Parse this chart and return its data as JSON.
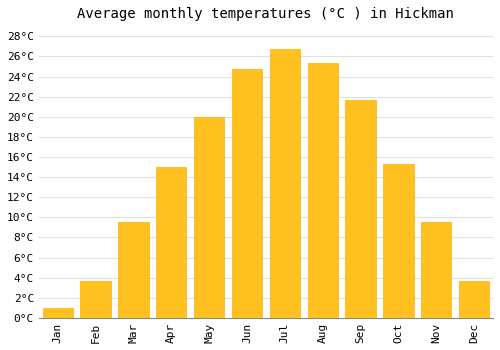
{
  "title": "Average monthly temperatures (°C ) in Hickman",
  "months": [
    "Jan",
    "Feb",
    "Mar",
    "Apr",
    "May",
    "Jun",
    "Jul",
    "Aug",
    "Sep",
    "Oct",
    "Nov",
    "Dec"
  ],
  "values": [
    1.0,
    3.7,
    9.5,
    15.0,
    20.0,
    24.8,
    26.7,
    25.3,
    21.7,
    15.3,
    9.5,
    3.7
  ],
  "bar_color": "#FFC020",
  "bar_edge_color": "#FFB000",
  "background_color": "#FFFFFF",
  "grid_color": "#E0E0E0",
  "ylim": [
    0,
    29
  ],
  "yticks": [
    0,
    2,
    4,
    6,
    8,
    10,
    12,
    14,
    16,
    18,
    20,
    22,
    24,
    26,
    28
  ],
  "ytick_labels": [
    "0°C",
    "2°C",
    "4°C",
    "6°C",
    "8°C",
    "10°C",
    "12°C",
    "14°C",
    "16°C",
    "18°C",
    "20°C",
    "22°C",
    "24°C",
    "26°C",
    "28°C"
  ],
  "title_fontsize": 10,
  "tick_fontsize": 8,
  "font_family": "monospace"
}
